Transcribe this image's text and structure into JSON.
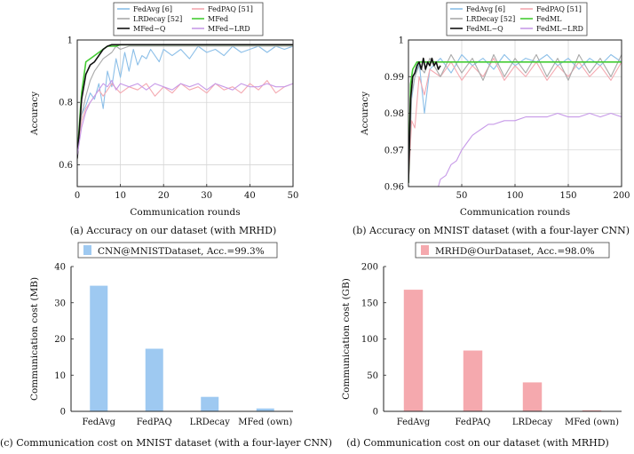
{
  "chart_data": [
    {
      "id": "a",
      "type": "line",
      "caption": "(a) Accuracy on our dataset (with MRHD)",
      "xlabel": "Communication rounds",
      "ylabel": "Accuracy",
      "xlim": [
        0,
        50
      ],
      "ylim": [
        0.53,
        1.0
      ],
      "xticks": [
        0,
        10,
        20,
        30,
        40,
        50
      ],
      "yticks": [
        0.6,
        0.8,
        1.0
      ],
      "ytick_labels": [
        "0.6",
        "0.8",
        "1"
      ],
      "grid": true,
      "legend_position": "top",
      "series": [
        {
          "name": "FedAvg [6]",
          "color": "#8cbfe8",
          "x": [
            0,
            1,
            2,
            3,
            4,
            5,
            6,
            7,
            8,
            9,
            10,
            11,
            12,
            13,
            14,
            15,
            16,
            17,
            18,
            19,
            20,
            22,
            24,
            26,
            28,
            30,
            32,
            34,
            36,
            38,
            40,
            42,
            44,
            46,
            48,
            50
          ],
          "y": [
            0.65,
            0.76,
            0.79,
            0.83,
            0.81,
            0.86,
            0.78,
            0.9,
            0.85,
            0.94,
            0.88,
            0.96,
            0.9,
            0.97,
            0.92,
            0.95,
            0.94,
            0.97,
            0.95,
            0.93,
            0.97,
            0.95,
            0.97,
            0.94,
            0.98,
            0.96,
            0.97,
            0.95,
            0.98,
            0.96,
            0.97,
            0.98,
            0.96,
            0.98,
            0.97,
            0.98
          ]
        },
        {
          "name": "FedPAQ [51]",
          "color": "#f4a9b1",
          "x": [
            0,
            1,
            2,
            3,
            4,
            5,
            6,
            8,
            10,
            12,
            14,
            16,
            18,
            20,
            22,
            24,
            26,
            28,
            30,
            32,
            34,
            36,
            38,
            40,
            42,
            44,
            46,
            48,
            50
          ],
          "y": [
            0.64,
            0.74,
            0.78,
            0.8,
            0.82,
            0.84,
            0.82,
            0.86,
            0.83,
            0.85,
            0.84,
            0.86,
            0.82,
            0.85,
            0.83,
            0.86,
            0.84,
            0.85,
            0.83,
            0.86,
            0.84,
            0.85,
            0.83,
            0.86,
            0.84,
            0.87,
            0.83,
            0.85,
            0.86
          ]
        },
        {
          "name": "LRDecay [52]",
          "color": "#a9a9a9",
          "x": [
            0,
            1,
            2,
            3,
            4,
            5,
            6,
            7,
            8,
            9,
            10,
            12,
            14,
            16,
            18,
            20,
            25,
            30,
            35,
            40,
            45,
            50
          ],
          "y": [
            0.65,
            0.76,
            0.82,
            0.87,
            0.9,
            0.92,
            0.94,
            0.95,
            0.96,
            0.98,
            0.97,
            0.98,
            0.98,
            0.98,
            0.98,
            0.98,
            0.98,
            0.98,
            0.98,
            0.98,
            0.98,
            0.98
          ]
        },
        {
          "name": "MFed",
          "color": "#44cc33",
          "x": [
            0,
            1,
            2,
            3,
            4,
            5,
            6,
            7,
            8,
            9,
            10,
            12,
            15,
            20,
            25,
            30,
            35,
            40,
            45,
            50
          ],
          "y": [
            0.63,
            0.83,
            0.93,
            0.94,
            0.95,
            0.96,
            0.97,
            0.98,
            0.98,
            0.98,
            0.985,
            0.985,
            0.985,
            0.985,
            0.985,
            0.985,
            0.985,
            0.985,
            0.985,
            0.985
          ]
        },
        {
          "name": "MFed−Q",
          "color": "#111111",
          "x": [
            0,
            1,
            2,
            3,
            4,
            5,
            6,
            7,
            8,
            9,
            10,
            12,
            15,
            20,
            25,
            30,
            35,
            40,
            45,
            50
          ],
          "y": [
            0.62,
            0.81,
            0.89,
            0.92,
            0.93,
            0.95,
            0.97,
            0.98,
            0.985,
            0.985,
            0.985,
            0.985,
            0.985,
            0.985,
            0.985,
            0.985,
            0.985,
            0.985,
            0.985,
            0.985
          ]
        },
        {
          "name": "MFed−LRD",
          "color": "#c79ae8",
          "x": [
            0,
            1,
            2,
            3,
            4,
            5,
            6,
            7,
            8,
            9,
            10,
            12,
            14,
            16,
            18,
            20,
            22,
            24,
            26,
            28,
            30,
            32,
            34,
            36,
            38,
            40,
            42,
            44,
            46,
            48,
            50
          ],
          "y": [
            0.63,
            0.72,
            0.77,
            0.8,
            0.82,
            0.84,
            0.86,
            0.85,
            0.87,
            0.84,
            0.86,
            0.85,
            0.86,
            0.84,
            0.86,
            0.85,
            0.84,
            0.86,
            0.85,
            0.86,
            0.84,
            0.86,
            0.85,
            0.84,
            0.86,
            0.85,
            0.85,
            0.86,
            0.85,
            0.85,
            0.86
          ]
        }
      ]
    },
    {
      "id": "b",
      "type": "line",
      "caption": "(b) Accuracy on MNIST dataset (with a four-layer CNN)",
      "xlabel": "Communication rounds",
      "ylabel": "Accuracy",
      "xlim": [
        0,
        200
      ],
      "ylim": [
        0.96,
        1.0
      ],
      "xticks": [
        50,
        100,
        150,
        200
      ],
      "yticks": [
        0.96,
        0.97,
        0.98,
        0.99,
        1.0
      ],
      "ytick_labels": [
        "0.96",
        "0.97",
        "0.98",
        "0.99",
        "1"
      ],
      "grid": true,
      "legend_position": "top",
      "series": [
        {
          "name": "FedAvg [6]",
          "color": "#8cbfe8",
          "x": [
            0,
            3,
            6,
            10,
            15,
            20,
            30,
            40,
            50,
            60,
            70,
            80,
            90,
            100,
            110,
            120,
            130,
            140,
            150,
            160,
            170,
            180,
            190,
            200
          ],
          "y": [
            0.962,
            0.984,
            0.99,
            0.994,
            0.98,
            0.992,
            0.995,
            0.991,
            0.996,
            0.993,
            0.995,
            0.992,
            0.996,
            0.993,
            0.995,
            0.994,
            0.996,
            0.993,
            0.995,
            0.992,
            0.995,
            0.993,
            0.996,
            0.994
          ]
        },
        {
          "name": "FedPAQ [51]",
          "color": "#f4a9b1",
          "x": [
            0,
            3,
            6,
            10,
            15,
            20,
            30,
            40,
            50,
            60,
            70,
            80,
            90,
            100,
            110,
            120,
            130,
            140,
            150,
            160,
            170,
            180,
            190,
            200
          ],
          "y": [
            0.961,
            0.978,
            0.976,
            0.99,
            0.985,
            0.992,
            0.99,
            0.994,
            0.989,
            0.993,
            0.99,
            0.995,
            0.989,
            0.993,
            0.99,
            0.994,
            0.989,
            0.993,
            0.99,
            0.994,
            0.99,
            0.993,
            0.989,
            0.994
          ]
        },
        {
          "name": "LRDecay [52]",
          "color": "#a9a9a9",
          "x": [
            0,
            3,
            6,
            10,
            15,
            20,
            30,
            40,
            50,
            60,
            70,
            80,
            90,
            100,
            110,
            120,
            130,
            140,
            150,
            160,
            170,
            180,
            190,
            200
          ],
          "y": [
            0.961,
            0.985,
            0.99,
            0.993,
            0.991,
            0.995,
            0.99,
            0.996,
            0.991,
            0.995,
            0.989,
            0.996,
            0.99,
            0.995,
            0.991,
            0.996,
            0.99,
            0.995,
            0.989,
            0.996,
            0.991,
            0.995,
            0.99,
            0.996
          ]
        },
        {
          "name": "FedML",
          "color": "#44cc33",
          "x": [
            0,
            2,
            4,
            6,
            8,
            10,
            15,
            20,
            30,
            50,
            100,
            150,
            200
          ],
          "y": [
            0.961,
            0.988,
            0.992,
            0.993,
            0.994,
            0.994,
            0.994,
            0.994,
            0.994,
            0.994,
            0.994,
            0.994,
            0.994
          ]
        },
        {
          "name": "FedML−Q",
          "color": "#111111",
          "x": [
            0,
            2,
            4,
            6,
            8,
            10,
            12,
            14,
            16,
            18,
            20,
            22,
            24,
            26,
            28,
            30
          ],
          "y": [
            0.961,
            0.984,
            0.99,
            0.991,
            0.993,
            0.994,
            0.992,
            0.995,
            0.992,
            0.994,
            0.993,
            0.995,
            0.993,
            0.994,
            0.992,
            0.993
          ]
        },
        {
          "name": "FedML−LRD",
          "color": "#c79ae8",
          "x": [
            28,
            30,
            35,
            40,
            45,
            50,
            55,
            60,
            65,
            70,
            75,
            80,
            90,
            100,
            110,
            120,
            130,
            140,
            150,
            160,
            170,
            180,
            190,
            200
          ],
          "y": [
            0.96,
            0.962,
            0.963,
            0.966,
            0.967,
            0.97,
            0.972,
            0.974,
            0.975,
            0.976,
            0.977,
            0.977,
            0.978,
            0.978,
            0.979,
            0.979,
            0.979,
            0.98,
            0.979,
            0.979,
            0.98,
            0.979,
            0.98,
            0.979
          ]
        }
      ]
    },
    {
      "id": "c",
      "type": "bar",
      "caption": "(c) Communication cost on MNIST dataset (with a four-layer CNN)",
      "legend": "CNN@MNISTDataset, Acc.=99.3%",
      "legend_position": "top",
      "color": "#9ec9f1",
      "categories": [
        "FedAvg",
        "FedPAQ",
        "LRDecay",
        "MFed (own)"
      ],
      "values": [
        34.7,
        17.3,
        4.0,
        0.8
      ],
      "ylabel": "Communication cost (MB)",
      "xlabel": "",
      "ylim": [
        0,
        40
      ],
      "yticks": [
        0,
        10,
        20,
        30,
        40
      ]
    },
    {
      "id": "d",
      "type": "bar",
      "caption": "(d) Communication cost on our dataset (with MRHD)",
      "legend": "MRHD@OurDataset, Acc.=98.0%",
      "legend_position": "top",
      "color": "#f5a9ae",
      "categories": [
        "FedAvg",
        "FedPAQ",
        "LRDecay",
        "MFed (own)"
      ],
      "values": [
        168,
        84,
        40,
        1.5
      ],
      "ylabel": "Communication cost (GB)",
      "xlabel": "",
      "ylim": [
        0,
        200
      ],
      "yticks": [
        0,
        50,
        100,
        150,
        200
      ]
    }
  ]
}
